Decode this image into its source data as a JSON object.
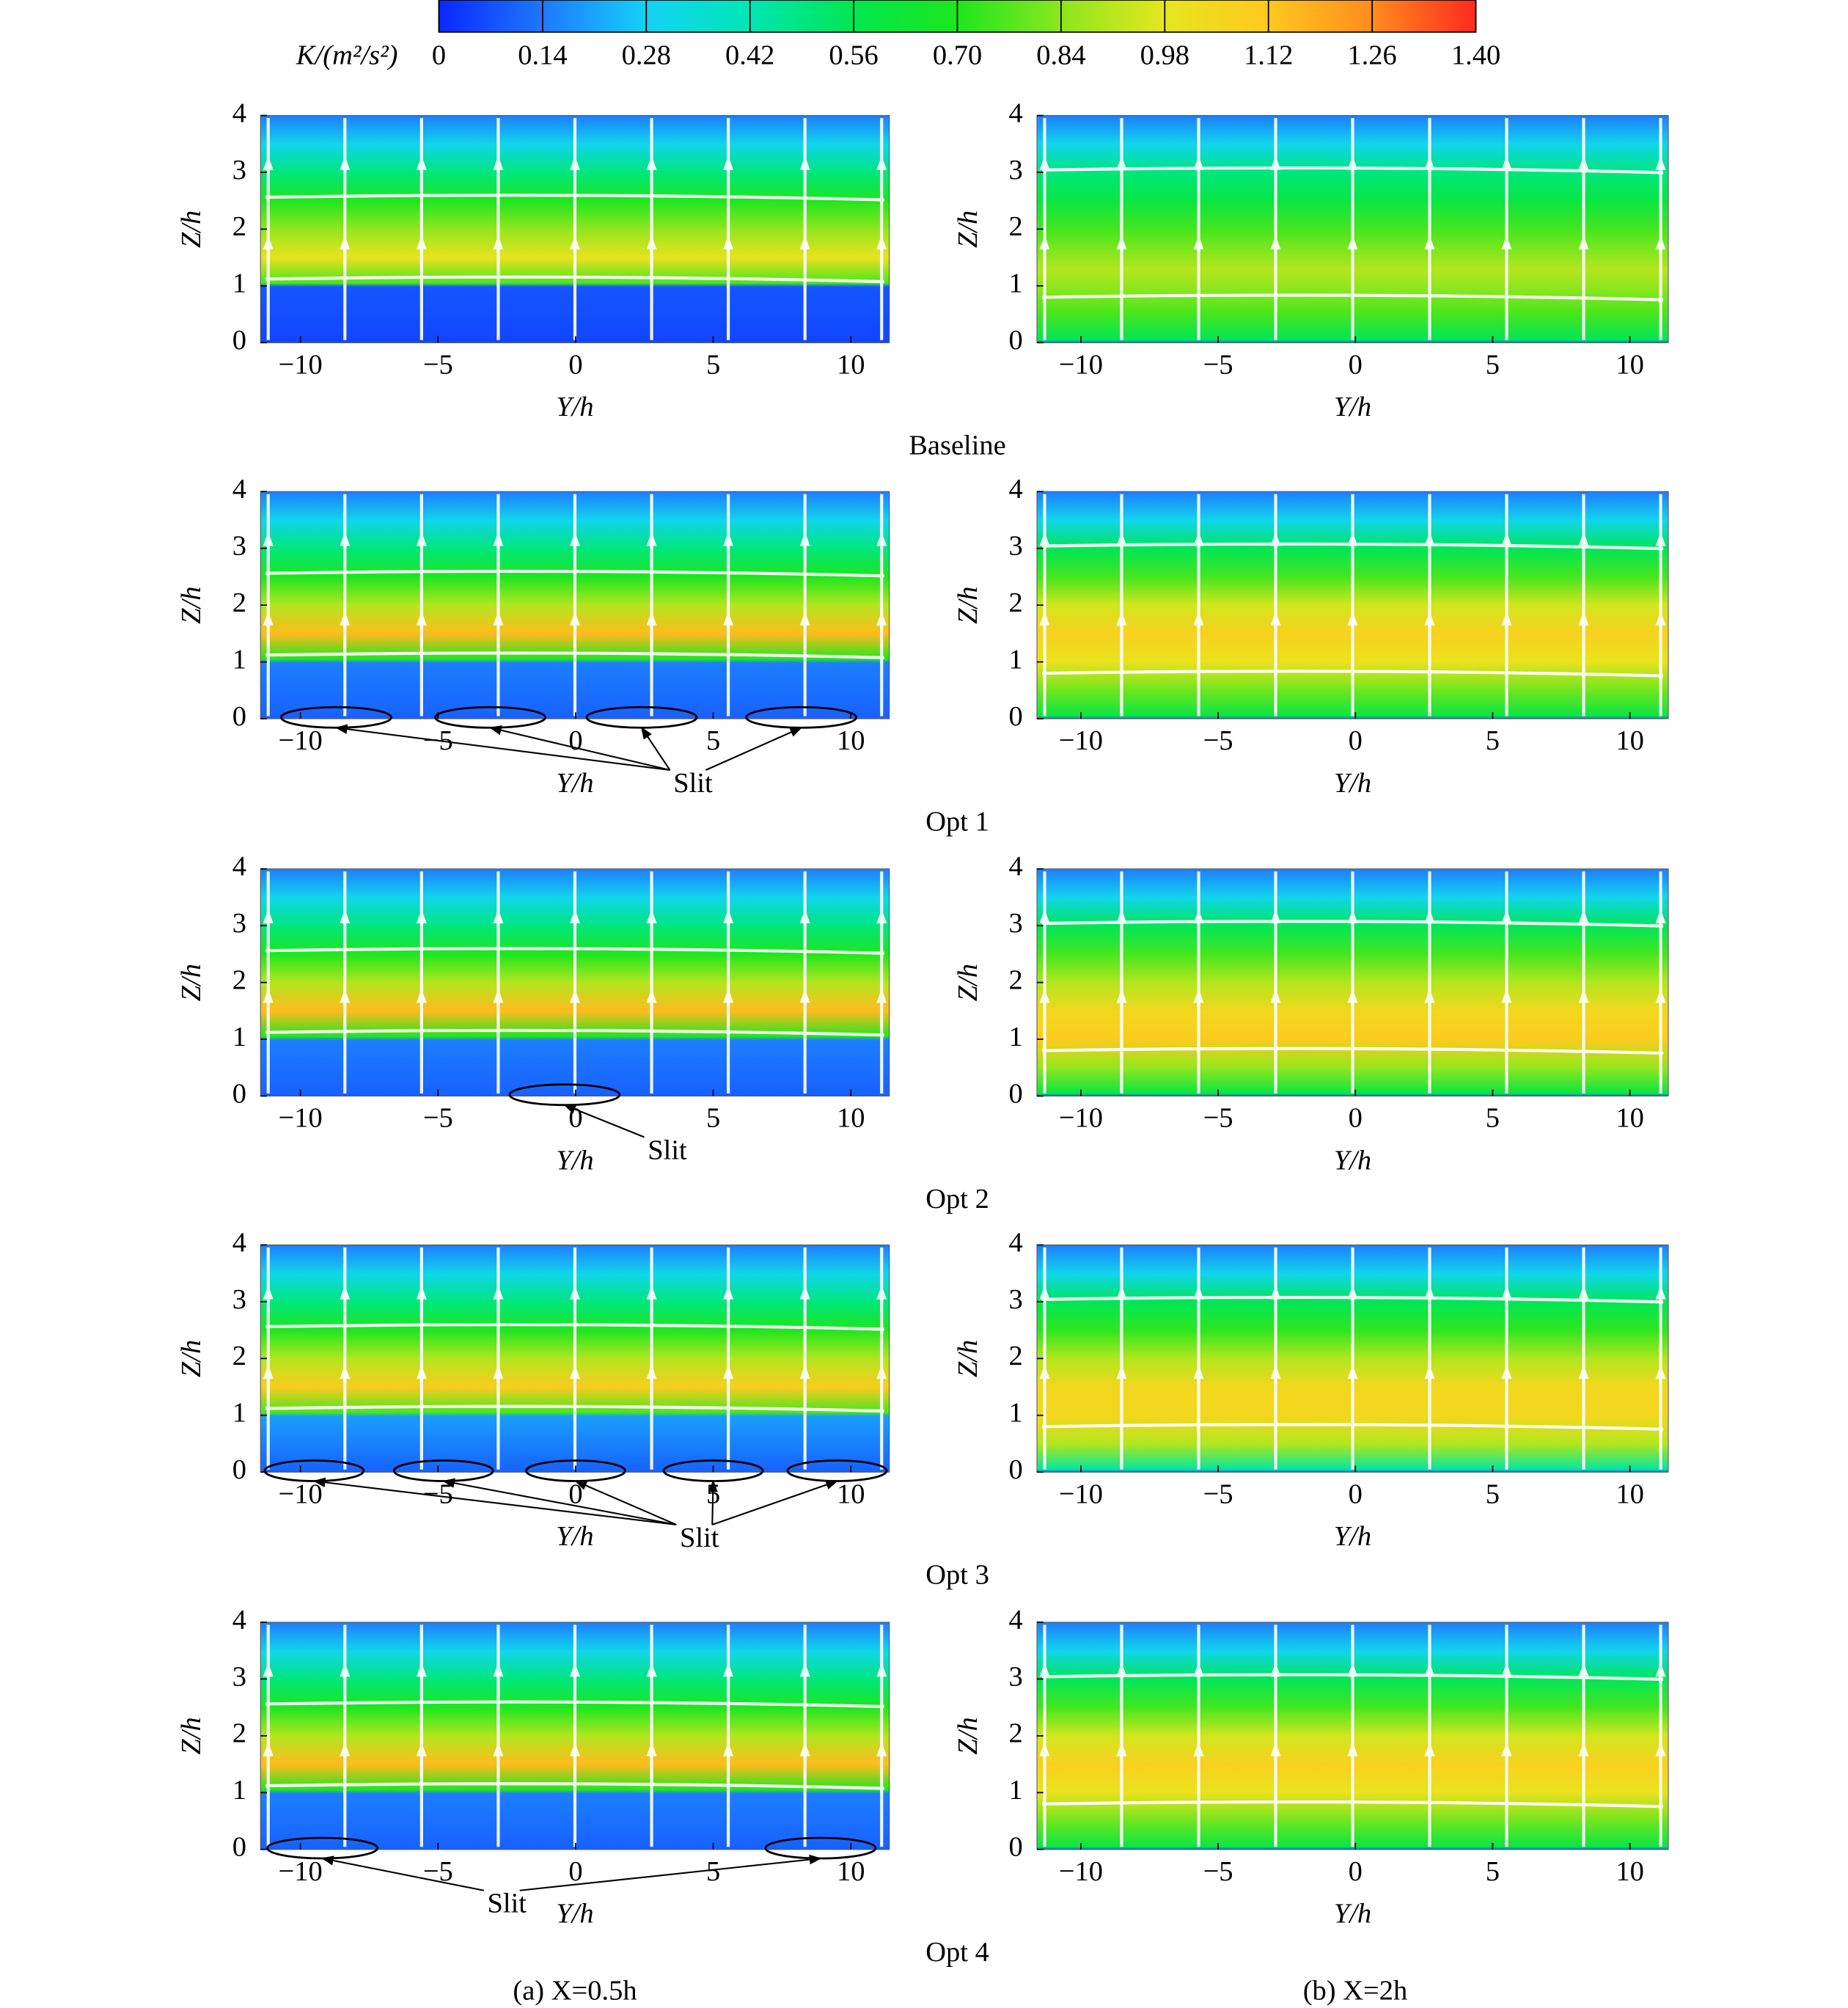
{
  "colorbar": {
    "label": "K/(m²/s²)",
    "lim": [
      0,
      1.4
    ],
    "ticks": [
      0,
      0.14,
      0.28,
      0.42,
      0.56,
      {
        "value": 0.7,
        "label": "0.70"
      },
      0.84,
      0.98,
      1.12,
      1.26,
      {
        "value": 1.4,
        "label": "1.40"
      }
    ],
    "colors": [
      "#0a28ff",
      "#1e78ff",
      "#14d2f5",
      "#00e6b4",
      "#00e650",
      "#1ee61e",
      "#8ce61e",
      "#e6e61e",
      "#ffc81e",
      "#ff8c1e",
      "#ff2a1e"
    ]
  },
  "chart_data": [
    {
      "type": "contour",
      "xlabel": "Y/h",
      "ylabel": "Z/h",
      "xlim": [
        -11.45,
        11.4
      ],
      "ylim": [
        0,
        4
      ],
      "xticks": [
        {
          "value": -10,
          "label": "−10"
        },
        {
          "value": -5,
          "label": "−5"
        },
        0,
        5,
        10
      ],
      "yticks": [
        0,
        1,
        2,
        3,
        4
      ],
      "z": [
        0,
        0.99,
        1.05,
        1.5,
        2,
        2.5,
        3,
        3.5,
        4
      ],
      "k": [
        0.05,
        0.08,
        0.75,
        1.0,
        0.85,
        0.7,
        0.5,
        0.3,
        0.15
      ]
    },
    {
      "type": "contour",
      "xlabel": "Y/h",
      "ylabel": "Z/h",
      "xlim": [
        -11.6,
        11.4
      ],
      "ylim": [
        0,
        4
      ],
      "xticks": [
        {
          "value": -10,
          "label": "−10"
        },
        {
          "value": -5,
          "label": "−5"
        },
        0,
        5,
        10
      ],
      "yticks": [
        0,
        1,
        2,
        3,
        4
      ],
      "z": [
        0,
        0.05,
        0.5,
        1,
        1.3,
        2,
        2.5,
        3,
        3.5,
        4
      ],
      "k": [
        0.1,
        0.55,
        0.75,
        0.85,
        0.9,
        0.75,
        0.6,
        0.5,
        0.3,
        0.15
      ]
    },
    {
      "type": "contour",
      "xlabel": "Y/h",
      "ylabel": "Z/h",
      "xlim": [
        -11.45,
        11.4
      ],
      "ylim": [
        0,
        4
      ],
      "xticks": [
        {
          "value": -10,
          "label": "−10"
        },
        {
          "value": -5,
          "label": "−5"
        },
        0,
        5,
        10
      ],
      "yticks": [
        0,
        1,
        2,
        3,
        4
      ],
      "z": [
        0,
        0.99,
        1.05,
        1.5,
        2,
        2.5,
        3,
        3.5,
        4
      ],
      "k": [
        0.1,
        0.15,
        0.7,
        1.15,
        0.9,
        0.7,
        0.5,
        0.3,
        0.15
      ],
      "annotation": "Slit",
      "slit_centers": [
        -8.7,
        -3.1,
        2.4,
        8.2
      ],
      "slit_width": 4
    },
    {
      "type": "contour",
      "xlabel": "Y/h",
      "ylabel": "Z/h",
      "xlim": [
        -11.6,
        11.4
      ],
      "ylim": [
        0,
        4
      ],
      "xticks": [
        {
          "value": -10,
          "label": "−10"
        },
        {
          "value": -5,
          "label": "−5"
        },
        0,
        5,
        10
      ],
      "yticks": [
        0,
        1,
        2,
        3,
        4
      ],
      "z": [
        0,
        0.05,
        0.5,
        1,
        1.5,
        2,
        2.5,
        3,
        3.5,
        4
      ],
      "k": [
        0.1,
        0.6,
        0.8,
        1.0,
        1.08,
        0.95,
        0.75,
        0.55,
        0.3,
        0.15
      ]
    },
    {
      "type": "contour",
      "xlabel": "Y/h",
      "ylabel": "Z/h",
      "xlim": [
        -11.45,
        11.4
      ],
      "ylim": [
        0,
        4
      ],
      "xticks": [
        {
          "value": -10,
          "label": "−10"
        },
        {
          "value": -5,
          "label": "−5"
        },
        0,
        5,
        10
      ],
      "yticks": [
        0,
        1,
        2,
        3,
        4
      ],
      "z": [
        0,
        0.99,
        1.05,
        1.5,
        2,
        2.5,
        3,
        3.5,
        4
      ],
      "k": [
        0.1,
        0.15,
        0.7,
        1.15,
        0.9,
        0.7,
        0.5,
        0.3,
        0.15
      ],
      "annotation": "Slit",
      "slit_centers": [
        -0.4
      ],
      "slit_width": 4
    },
    {
      "type": "contour",
      "xlabel": "Y/h",
      "ylabel": "Z/h",
      "xlim": [
        -11.6,
        11.4
      ],
      "ylim": [
        0,
        4
      ],
      "xticks": [
        {
          "value": -10,
          "label": "−10"
        },
        {
          "value": -5,
          "label": "−5"
        },
        0,
        5,
        10
      ],
      "yticks": [
        0,
        1,
        2,
        3,
        4
      ],
      "z": [
        0,
        0.05,
        0.5,
        1,
        1.5,
        2,
        2.5,
        3,
        3.5,
        4
      ],
      "k": [
        0.1,
        0.6,
        0.85,
        1.1,
        1.05,
        0.9,
        0.75,
        0.55,
        0.3,
        0.15
      ]
    },
    {
      "type": "contour",
      "xlabel": "Y/h",
      "ylabel": "Z/h",
      "xlim": [
        -11.45,
        11.4
      ],
      "ylim": [
        0,
        4
      ],
      "xticks": [
        {
          "value": -10,
          "label": "−10"
        },
        {
          "value": -5,
          "label": "−5"
        },
        0,
        5,
        10
      ],
      "yticks": [
        0,
        1,
        2,
        3,
        4
      ],
      "z": [
        0,
        0.99,
        1.05,
        1.5,
        2,
        2.5,
        3,
        3.5,
        4
      ],
      "k": [
        0.1,
        0.2,
        0.75,
        1.1,
        0.9,
        0.7,
        0.5,
        0.3,
        0.15
      ],
      "annotation": "Slit",
      "slit_centers": [
        -9.5,
        -4.8,
        0,
        5.0,
        9.5
      ],
      "slit_width": 3.6
    },
    {
      "type": "contour",
      "xlabel": "Y/h",
      "ylabel": "Z/h",
      "xlim": [
        -11.6,
        11.4
      ],
      "ylim": [
        0,
        4
      ],
      "xticks": [
        {
          "value": -10,
          "label": "−10"
        },
        {
          "value": -5,
          "label": "−5"
        },
        0,
        5,
        10
      ],
      "yticks": [
        0,
        1,
        2,
        3,
        4
      ],
      "z": [
        0,
        0.05,
        0.5,
        1,
        1.5,
        2,
        2.5,
        3,
        3.5,
        4
      ],
      "k": [
        0.1,
        0.45,
        0.9,
        1.05,
        1.05,
        0.9,
        0.72,
        0.55,
        0.3,
        0.15
      ]
    },
    {
      "type": "contour",
      "xlabel": "Y/h",
      "ylabel": "Z/h",
      "xlim": [
        -11.45,
        11.4
      ],
      "ylim": [
        0,
        4
      ],
      "xticks": [
        {
          "value": -10,
          "label": "−10"
        },
        {
          "value": -5,
          "label": "−5"
        },
        0,
        5,
        10
      ],
      "yticks": [
        0,
        1,
        2,
        3,
        4
      ],
      "z": [
        0,
        0.99,
        1.05,
        1.5,
        2,
        2.5,
        3,
        3.5,
        4
      ],
      "k": [
        0.1,
        0.15,
        0.7,
        1.15,
        0.9,
        0.7,
        0.5,
        0.3,
        0.15
      ],
      "annotation": "Slit",
      "slit_centers": [
        -9.2,
        8.9
      ],
      "slit_width": 4
    },
    {
      "type": "contour",
      "xlabel": "Y/h",
      "ylabel": "Z/h",
      "xlim": [
        -11.6,
        11.4
      ],
      "ylim": [
        0,
        4
      ],
      "xticks": [
        {
          "value": -10,
          "label": "−10"
        },
        {
          "value": -5,
          "label": "−5"
        },
        0,
        5,
        10
      ],
      "yticks": [
        0,
        1,
        2,
        3,
        4
      ],
      "z": [
        0,
        0.05,
        0.5,
        1,
        1.5,
        2,
        2.5,
        3,
        3.5,
        4
      ],
      "k": [
        0.1,
        0.6,
        0.8,
        1.0,
        1.08,
        0.95,
        0.75,
        0.55,
        0.3,
        0.15
      ]
    }
  ],
  "row_captions": [
    "Baseline",
    "Opt 1",
    "Opt 2",
    "Opt 3",
    "Opt 4"
  ],
  "column_captions": [
    "(a) X=0.5h",
    "(b) X=2h"
  ]
}
